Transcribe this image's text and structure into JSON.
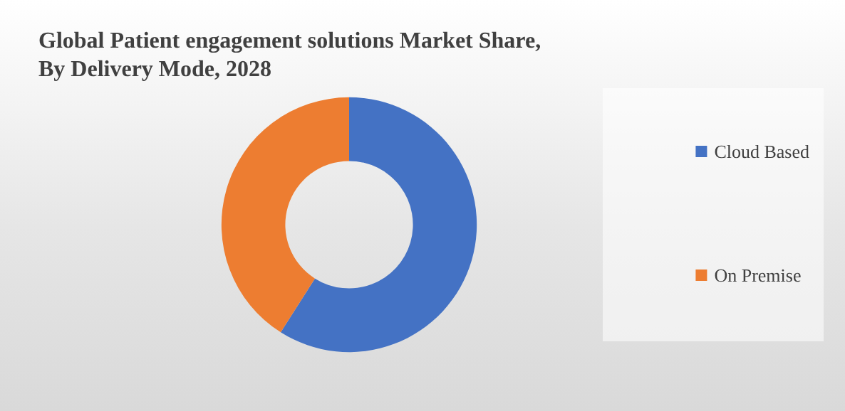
{
  "chart_data": {
    "type": "donut",
    "title": "Global Patient engagement solutions Market Share,\nBy Delivery Mode, 2028",
    "categories": [
      "Cloud Based",
      "On Premise"
    ],
    "values": [
      59,
      41
    ],
    "colors": [
      "#4472c4",
      "#ed7d31"
    ],
    "legend": "right"
  }
}
